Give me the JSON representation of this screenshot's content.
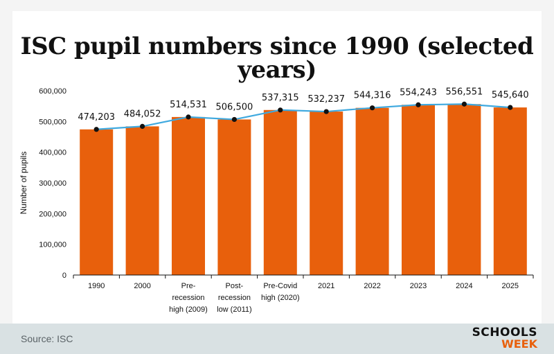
{
  "title": "ISC pupil numbers since 1990 (selected years)",
  "source": "Source: ISC",
  "logo": {
    "line1": "SCHOOLS",
    "line2": "WEEK"
  },
  "colors": {
    "bar": "#e8600c",
    "line": "#3fa9df",
    "dot": "#111111",
    "footer": "#d9e1e3"
  },
  "chart_data": {
    "type": "bar",
    "ylabel": "Number of pupils",
    "ylim": [
      0,
      600000
    ],
    "yticks": [
      "0",
      "100,000",
      "200,000",
      "300,000",
      "400,000",
      "500,000",
      "600,000"
    ],
    "categories": [
      [
        "1990"
      ],
      [
        "2000"
      ],
      [
        "Pre-",
        "recession",
        "high (2009)"
      ],
      [
        "Post-",
        "recession",
        "low (2011)"
      ],
      [
        "Pre-Covid",
        "high (2020)"
      ],
      [
        "2021"
      ],
      [
        "2022"
      ],
      [
        "2023"
      ],
      [
        "2024"
      ],
      [
        "2025"
      ]
    ],
    "values": [
      474203,
      484052,
      514531,
      506500,
      537315,
      532237,
      544316,
      554243,
      556551,
      545640
    ],
    "value_labels": [
      "474,203",
      "484,052",
      "514,531",
      "506,500",
      "537,315",
      "532,237",
      "544,316",
      "554,243",
      "556,551",
      "545,640"
    ],
    "overlay": "line with dots connecting bar tops",
    "grid": false
  }
}
